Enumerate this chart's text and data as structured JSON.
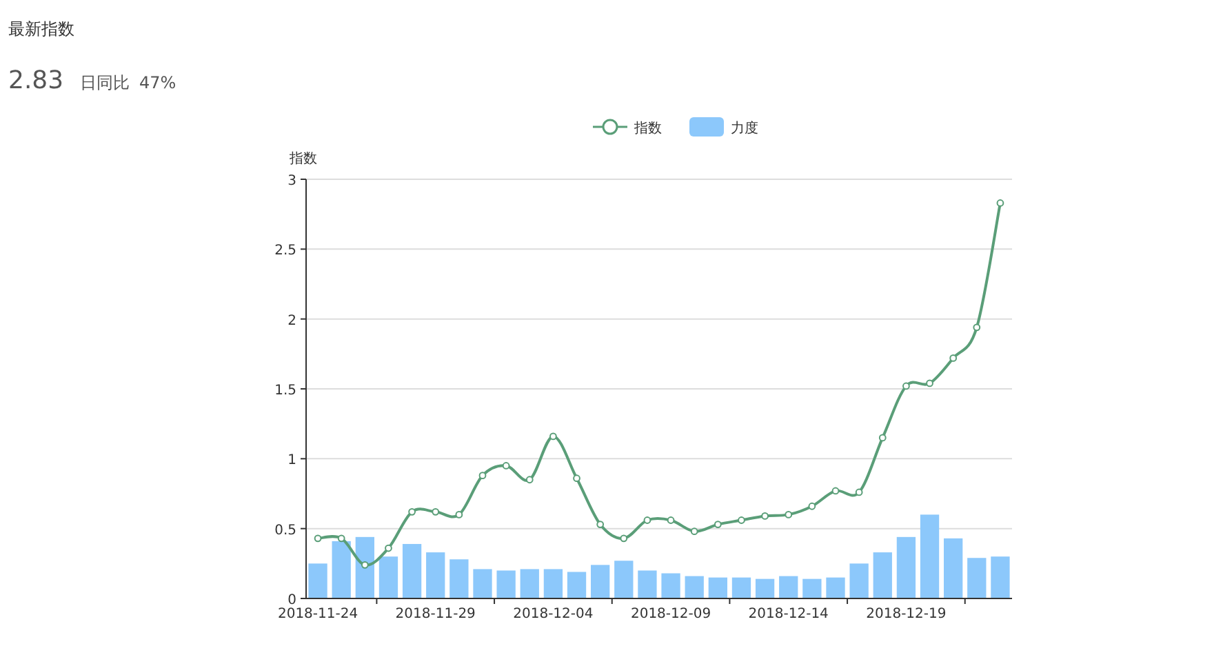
{
  "chart_data": {
    "type": "bar",
    "ylabel": "指数",
    "legend": "top",
    "grid": "y",
    "marker": "circle",
    "annotations": [
      "最新指数",
      "2.83",
      "日同比",
      "47%"
    ],
    "categories": [
      "2018-11-24",
      null,
      null,
      null,
      null,
      "2018-11-29",
      null,
      null,
      null,
      null,
      "2018-12-04",
      null,
      null,
      null,
      null,
      "2018-12-09",
      null,
      null,
      null,
      null,
      "2018-12-14",
      null,
      null,
      null,
      null,
      "2018-12-19",
      null,
      null,
      null,
      null
    ],
    "ylim": [
      0,
      3
    ],
    "yticks": [
      0,
      0.5,
      1,
      1.5,
      2,
      2.5,
      3
    ],
    "series": [
      {
        "name": "指数",
        "type": "line",
        "color": "#5a9e78",
        "values": [
          0.43,
          0.43,
          0.24,
          0.36,
          0.62,
          0.62,
          0.6,
          0.88,
          0.95,
          0.85,
          1.16,
          0.86,
          0.53,
          0.43,
          0.56,
          0.56,
          0.48,
          0.53,
          0.56,
          0.59,
          0.6,
          0.66,
          0.77,
          0.76,
          1.15,
          1.52,
          1.54,
          1.72,
          1.94,
          2.83
        ]
      },
      {
        "name": "力度",
        "color": "#8cc8fb",
        "values": [
          0.25,
          0.41,
          0.44,
          0.3,
          0.39,
          0.33,
          0.28,
          0.21,
          0.2,
          0.21,
          0.21,
          0.19,
          0.24,
          0.27,
          0.2,
          0.18,
          0.16,
          0.15,
          0.15,
          0.14,
          0.16,
          0.14,
          0.15,
          0.25,
          0.33,
          0.44,
          0.6,
          0.43,
          0.29,
          0.3
        ]
      }
    ]
  }
}
